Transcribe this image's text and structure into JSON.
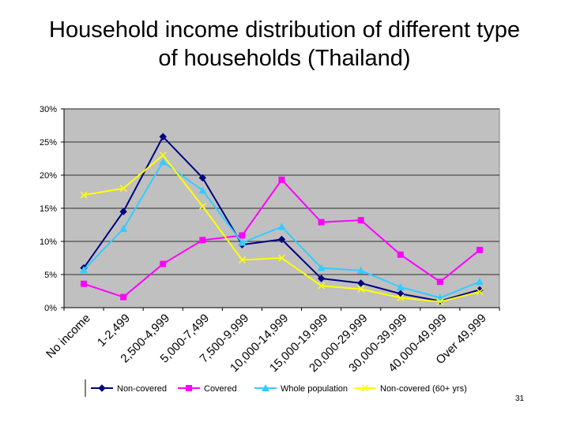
{
  "slide": {
    "title": "Household income distribution of different type\nof households (Thailand)",
    "slide_number": "31"
  },
  "chart_data": {
    "type": "line",
    "title": "",
    "xlabel": "",
    "ylabel": "",
    "ylim": [
      0,
      30
    ],
    "y_ticks": [
      "0%",
      "5%",
      "10%",
      "15%",
      "20%",
      "25%",
      "30%"
    ],
    "categories": [
      "No income",
      "1-2,499",
      "2,500-4,999",
      "5,000-7,499",
      "7,500-9,999",
      "10,000-14,999",
      "15,000-19,999",
      "20,000-29,999",
      "30,000-39,999",
      "40,000-49,999",
      "Over 49,999"
    ],
    "grid": true,
    "legend_position": "bottom",
    "plot_background": "#c0c0c0",
    "series": [
      {
        "name": "Non-covered",
        "color": "#000080",
        "marker": "diamond",
        "values": [
          6.0,
          14.5,
          25.8,
          19.6,
          9.5,
          10.3,
          4.4,
          3.7,
          2.1,
          1.0,
          2.7
        ]
      },
      {
        "name": "Covered",
        "color": "#ff00ff",
        "marker": "square",
        "values": [
          3.6,
          1.6,
          6.6,
          10.2,
          10.9,
          19.3,
          12.9,
          13.2,
          8.0,
          3.9,
          8.7
        ]
      },
      {
        "name": "Whole population",
        "color": "#33ccff",
        "marker": "triangle",
        "values": [
          5.7,
          11.9,
          22.0,
          17.7,
          9.8,
          12.2,
          6.0,
          5.6,
          3.1,
          1.5,
          3.9
        ]
      },
      {
        "name": "Non-covered (60+ yrs)",
        "color": "#ffff00",
        "marker": "x",
        "values": [
          17.0,
          18.0,
          23.0,
          15.3,
          7.2,
          7.5,
          3.3,
          2.8,
          1.5,
          0.9,
          2.4
        ]
      }
    ]
  }
}
